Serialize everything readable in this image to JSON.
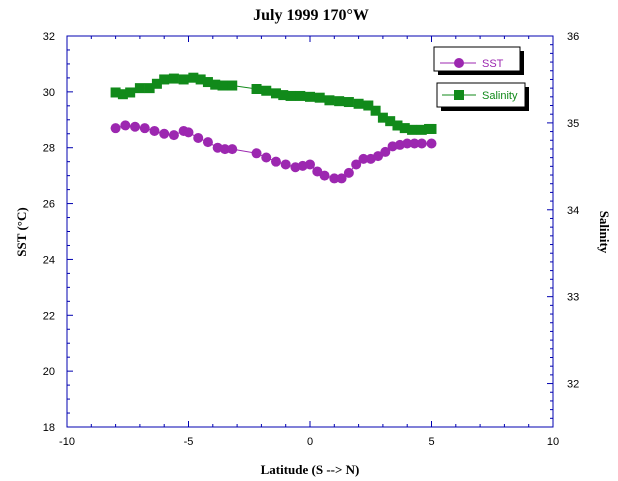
{
  "chart_data": {
    "type": "line",
    "title": "July 1999 170°W",
    "xlabel": "Latitude (S --> N)",
    "ylabel": "SST (°C)",
    "y2label": "Salinity",
    "xlim": [
      -10,
      10
    ],
    "ylim": [
      18,
      32
    ],
    "y2lim": [
      31.5,
      36
    ],
    "xticks": [
      "-10",
      "-5",
      "0",
      "5",
      "10"
    ],
    "yticks": [
      "18",
      "20",
      "22",
      "24",
      "26",
      "28",
      "30",
      "32"
    ],
    "y2ticks": [
      "32",
      "33",
      "34",
      "35",
      "36"
    ],
    "grid": false,
    "legend_position": "top-right",
    "colors": {
      "sst": "#9c27b0",
      "salinity": "#118a1a",
      "axis": "#0000b0"
    },
    "series": [
      {
        "name": "SST",
        "axis": "left",
        "marker": "circle",
        "x": [
          -8.0,
          -7.6,
          -7.2,
          -6.8,
          -6.4,
          -6.0,
          -5.6,
          -5.2,
          -5.0,
          -4.6,
          -4.2,
          -3.8,
          -3.5,
          -3.2,
          -2.2,
          -1.8,
          -1.4,
          -1.0,
          -0.6,
          -0.3,
          0.0,
          0.3,
          0.6,
          1.0,
          1.3,
          1.6,
          1.9,
          2.2,
          2.5,
          2.8,
          3.1,
          3.4,
          3.7,
          4.0,
          4.3,
          4.6,
          5.0
        ],
        "y": [
          28.7,
          28.8,
          28.75,
          28.7,
          28.6,
          28.5,
          28.45,
          28.6,
          28.55,
          28.35,
          28.2,
          28.0,
          27.95,
          27.95,
          27.8,
          27.65,
          27.5,
          27.4,
          27.3,
          27.35,
          27.4,
          27.15,
          27.0,
          26.9,
          26.9,
          27.1,
          27.4,
          27.6,
          27.6,
          27.7,
          27.85,
          28.05,
          28.1,
          28.15,
          28.15,
          28.15,
          28.15
        ]
      },
      {
        "name": "Salinity",
        "axis": "right",
        "marker": "square",
        "x": [
          -8.0,
          -7.7,
          -7.4,
          -7.0,
          -6.6,
          -6.3,
          -6.0,
          -5.6,
          -5.2,
          -4.8,
          -4.5,
          -4.2,
          -3.9,
          -3.6,
          -3.2,
          -2.2,
          -1.8,
          -1.4,
          -1.1,
          -0.8,
          -0.4,
          0.0,
          0.4,
          0.8,
          1.2,
          1.6,
          2.0,
          2.4,
          2.7,
          3.0,
          3.3,
          3.6,
          3.9,
          4.2,
          4.6,
          4.9,
          5.0
        ],
        "y": [
          35.35,
          35.33,
          35.35,
          35.4,
          35.4,
          35.45,
          35.5,
          35.51,
          35.5,
          35.52,
          35.5,
          35.47,
          35.44,
          35.43,
          35.43,
          35.39,
          35.37,
          35.34,
          35.32,
          35.31,
          35.31,
          35.3,
          35.29,
          35.26,
          35.25,
          35.24,
          35.22,
          35.2,
          35.14,
          35.06,
          35.02,
          34.97,
          34.94,
          34.92,
          34.92,
          34.93,
          34.93
        ]
      }
    ]
  }
}
